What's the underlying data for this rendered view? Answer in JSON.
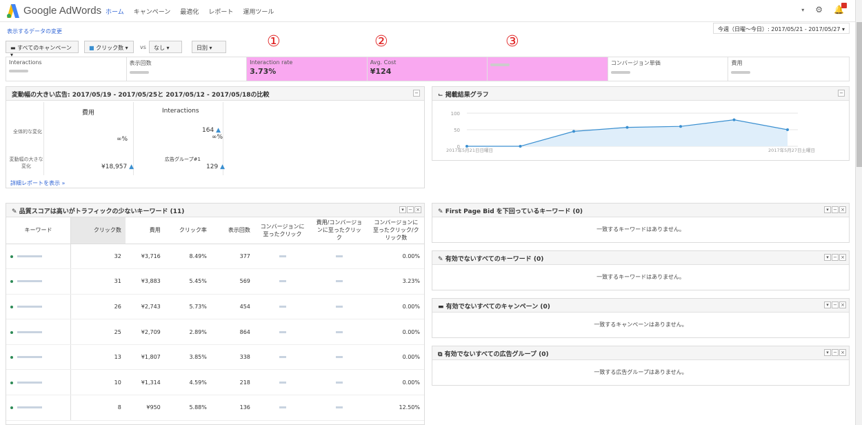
{
  "app": {
    "brand": "Google AdWords",
    "nav": [
      "ホーム",
      "キャンペーン",
      "最適化",
      "レポート",
      "運用ツール"
    ],
    "active_nav": "ホーム"
  },
  "toolbar": {
    "change_link": "表示するデータの変更",
    "date_range": "今週（日曜〜今日）: 2017/05/21 - 2017/05/27",
    "campaign_filter": "すべてのキャンペーン",
    "metric_filter": "クリック数",
    "vs": "vs",
    "compare": "なし",
    "granularity": "日別"
  },
  "metrics": [
    {
      "label": "Interactions",
      "value": ""
    },
    {
      "label": "表示回数",
      "value": ""
    },
    {
      "label": "Interaction rate",
      "value": "3.73%"
    },
    {
      "label": "Avg. Cost",
      "value": "¥124"
    },
    {
      "label": "",
      "value": ""
    },
    {
      "label": "コンバージョン単価",
      "value": ""
    },
    {
      "label": "費用",
      "value": ""
    }
  ],
  "annotations": [
    "①",
    "②",
    "③"
  ],
  "changes_panel": {
    "title": "変動幅の大きい広告: 2017/05/19 - 2017/05/25と 2017/05/12 - 2017/05/18の比較",
    "col1": "費用",
    "col2": "Interactions",
    "row1_label": "全体的な変化",
    "row2_label": "変動幅の大きな変化",
    "r1c1_pct": "∞%",
    "r1c2_val": "164",
    "r1c2_pct": "∞%",
    "r2c1_val": "¥18,957",
    "r2c2_label": "広告グループ#1",
    "r2c2_val": "129",
    "detail_link": "詳細レポートを表示 »"
  },
  "graph_panel": {
    "title": "掲載結果グラフ",
    "x_start": "2017年5月21日日曜日",
    "x_end": "2017年5月27日土曜日",
    "y_ticks": [
      "100",
      "50",
      "0"
    ]
  },
  "chart_data": {
    "type": "area",
    "x": [
      "2017/05/21",
      "2017/05/22",
      "2017/05/23",
      "2017/05/24",
      "2017/05/25",
      "2017/05/26",
      "2017/05/27"
    ],
    "values": [
      0,
      0,
      45,
      57,
      60,
      80,
      50
    ],
    "ylim": [
      0,
      100
    ],
    "color": "#3a8fd0"
  },
  "kw_panel": {
    "title": "品質スコアは高いがトラフィックの少ないキーワード (11)",
    "headers": [
      "キーワード",
      "クリック数",
      "費用",
      "クリック率",
      "表示回数",
      "コンバージョンに至ったクリック",
      "費用/コンバージョンに至ったクリック",
      "コンバージョンに至ったクリック/クリック数"
    ],
    "rows": [
      {
        "clicks": "32",
        "cost": "¥3,716",
        "ctr": "8.49%",
        "imp": "377",
        "rate": "0.00%"
      },
      {
        "clicks": "31",
        "cost": "¥3,883",
        "ctr": "5.45%",
        "imp": "569",
        "rate": "3.23%"
      },
      {
        "clicks": "26",
        "cost": "¥2,743",
        "ctr": "5.73%",
        "imp": "454",
        "rate": "0.00%"
      },
      {
        "clicks": "25",
        "cost": "¥2,709",
        "ctr": "2.89%",
        "imp": "864",
        "rate": "0.00%"
      },
      {
        "clicks": "13",
        "cost": "¥1,807",
        "ctr": "3.85%",
        "imp": "338",
        "rate": "0.00%"
      },
      {
        "clicks": "10",
        "cost": "¥1,314",
        "ctr": "4.59%",
        "imp": "218",
        "rate": "0.00%"
      },
      {
        "clicks": "8",
        "cost": "¥950",
        "ctr": "5.88%",
        "imp": "136",
        "rate": "12.50%"
      }
    ]
  },
  "side_panels": [
    {
      "title": "First Page Bid を下回っているキーワード (0)",
      "empty": "一致するキーワードはありません。",
      "icon": "pencil-icon"
    },
    {
      "title": "有効でないすべてのキーワード (0)",
      "empty": "一致するキーワードはありません。",
      "icon": "pencil-icon"
    },
    {
      "title": "有効でないすべてのキャンペーン (0)",
      "empty": "一致するキャンペーンはありません。",
      "icon": "folder-icon"
    },
    {
      "title": "有効でないすべての広告グループ (0)",
      "empty": "一致する広告グループはありません。",
      "icon": "adgroup-icon"
    }
  ]
}
